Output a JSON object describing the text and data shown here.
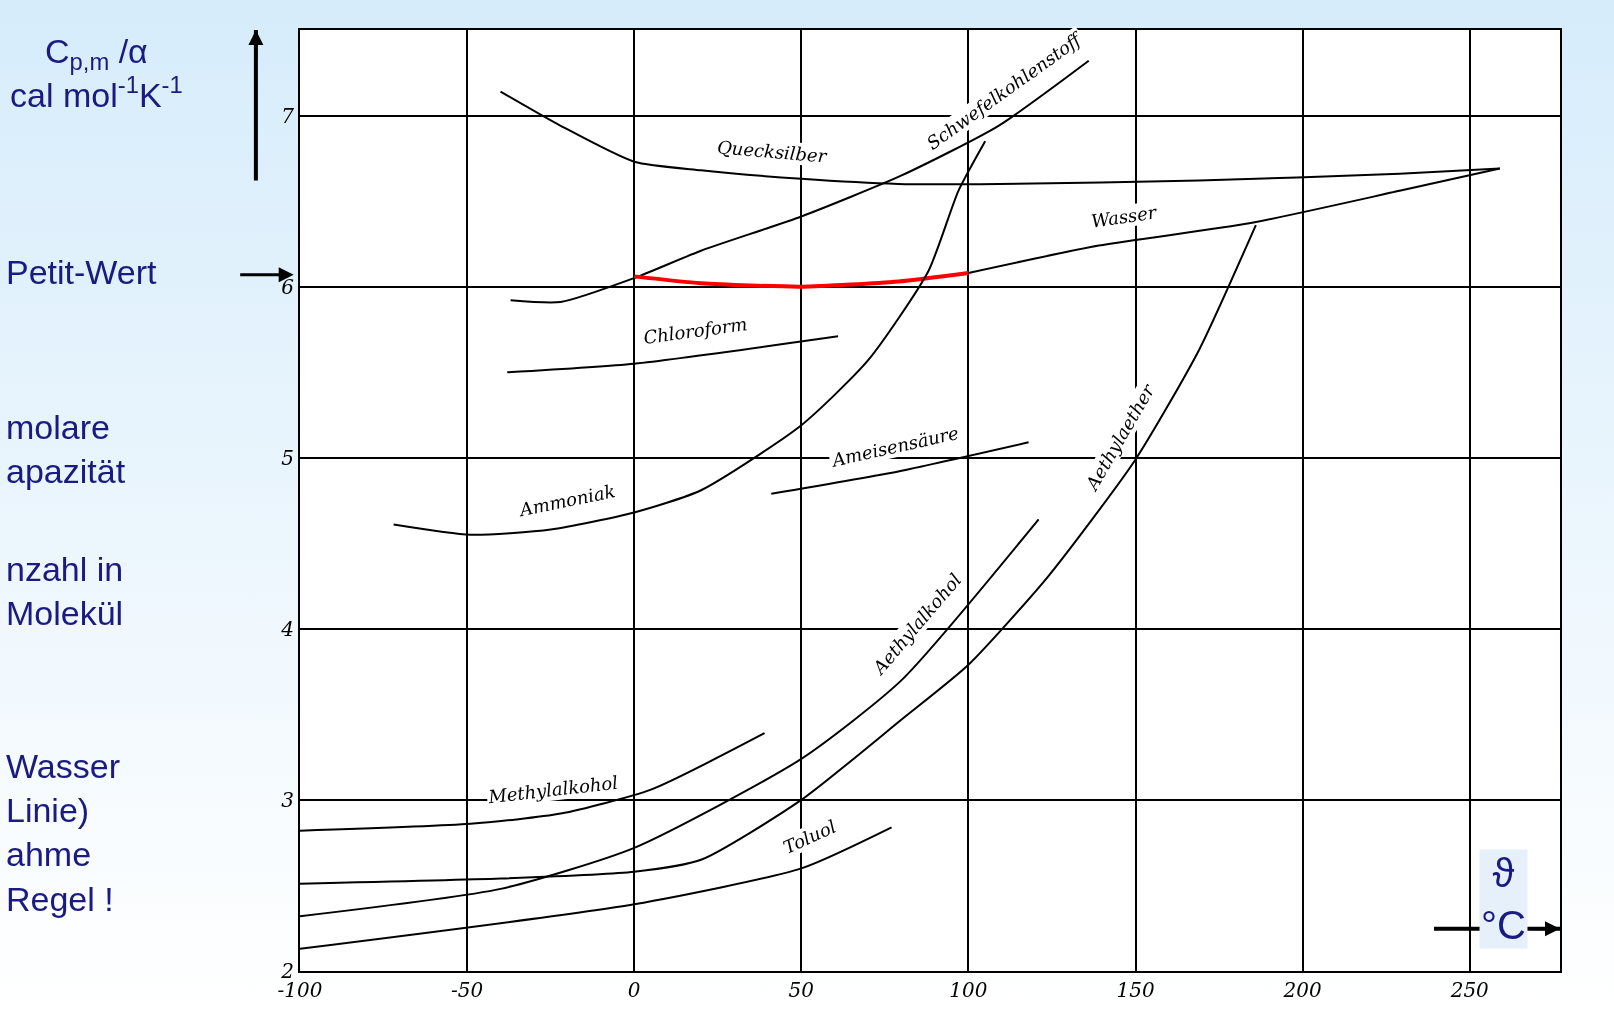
{
  "chart_data": {
    "type": "line",
    "ylabel": "C$_{p,m}$ /α\ncal mol$^{-1}$K$^{-1}$",
    "xlabel": "ϑ\n°C",
    "xlim": [
      -100,
      277
    ],
    "xticks": [
      -100,
      -50,
      0,
      50,
      100,
      150,
      200,
      250
    ],
    "ylim": [
      2,
      7.5
    ],
    "yticks": [
      2,
      3,
      4,
      5,
      6,
      7
    ],
    "grid": true,
    "legend": false,
    "marker": "none",
    "line_style": "solid",
    "annotations": [
      "Petit-Wert",
      "molare\napazität",
      "nzahl in\nMolekül",
      "Wasser\nLinie)\nahme\nRegel !"
    ],
    "series": [
      {
        "name": "Quecksilber",
        "color": "#000000",
        "x": [
          -40,
          -22,
          0,
          20,
          50,
          79,
          109,
          169,
          229,
          259
        ],
        "values": [
          7.14,
          6.94,
          6.73,
          6.68,
          6.63,
          6.6,
          6.6,
          6.62,
          6.66,
          6.69
        ]
      },
      {
        "name": "Schwefelkohlenstoff",
        "color": "#000000",
        "x": [
          -37,
          -22,
          0,
          20,
          50,
          80,
          109,
          136
        ],
        "values": [
          5.92,
          5.91,
          6.05,
          6.21,
          6.41,
          6.65,
          6.94,
          7.32
        ]
      },
      {
        "name": "Wasser",
        "color": "#000000",
        "x": [
          100,
          139,
          184,
          229,
          259
        ],
        "values": [
          6.08,
          6.24,
          6.37,
          6.56,
          6.69
        ]
      },
      {
        "color": "#ff0000",
        "x": [
          0,
          20,
          50,
          79,
          100
        ],
        "values": [
          6.06,
          6.02,
          6.0,
          6.03,
          6.08
        ]
      },
      {
        "name": "Chloroform",
        "color": "#000000",
        "x": [
          -38,
          0,
          61
        ],
        "values": [
          5.5,
          5.55,
          5.71
        ]
      },
      {
        "name": "Ammoniak",
        "color": "#000000",
        "x": [
          -72,
          -49,
          -25,
          0,
          20,
          50,
          70,
          88,
          97,
          105
        ],
        "values": [
          4.61,
          4.55,
          4.58,
          4.68,
          4.81,
          5.19,
          5.57,
          6.09,
          6.56,
          6.85
        ]
      },
      {
        "name": "Ameisensäure",
        "color": "#000000",
        "x": [
          41,
          79,
          118
        ],
        "values": [
          4.79,
          4.92,
          5.09
        ]
      },
      {
        "name": "Aethylaether",
        "color": "#000000",
        "x": [
          -100,
          -40,
          0,
          20,
          50,
          80,
          100,
          124,
          150,
          169,
          186
        ],
        "values": [
          2.51,
          2.54,
          2.58,
          2.65,
          3.0,
          3.47,
          3.79,
          4.31,
          4.99,
          5.63,
          6.36
        ]
      },
      {
        "name": "Aethylalkohol",
        "color": "#000000",
        "x": [
          -100,
          -40,
          0,
          50,
          80,
          121
        ],
        "values": [
          2.32,
          2.48,
          2.72,
          3.24,
          3.7,
          4.64
        ]
      },
      {
        "name": "Methylalkohol",
        "color": "#000000",
        "x": [
          -100,
          -49,
          -22,
          5,
          39
        ],
        "values": [
          2.82,
          2.86,
          2.92,
          3.06,
          3.39
        ]
      },
      {
        "name": "Toluol",
        "color": "#000000",
        "x": [
          -100,
          0,
          50,
          77
        ],
        "values": [
          2.13,
          2.39,
          2.6,
          2.84
        ]
      }
    ]
  }
}
